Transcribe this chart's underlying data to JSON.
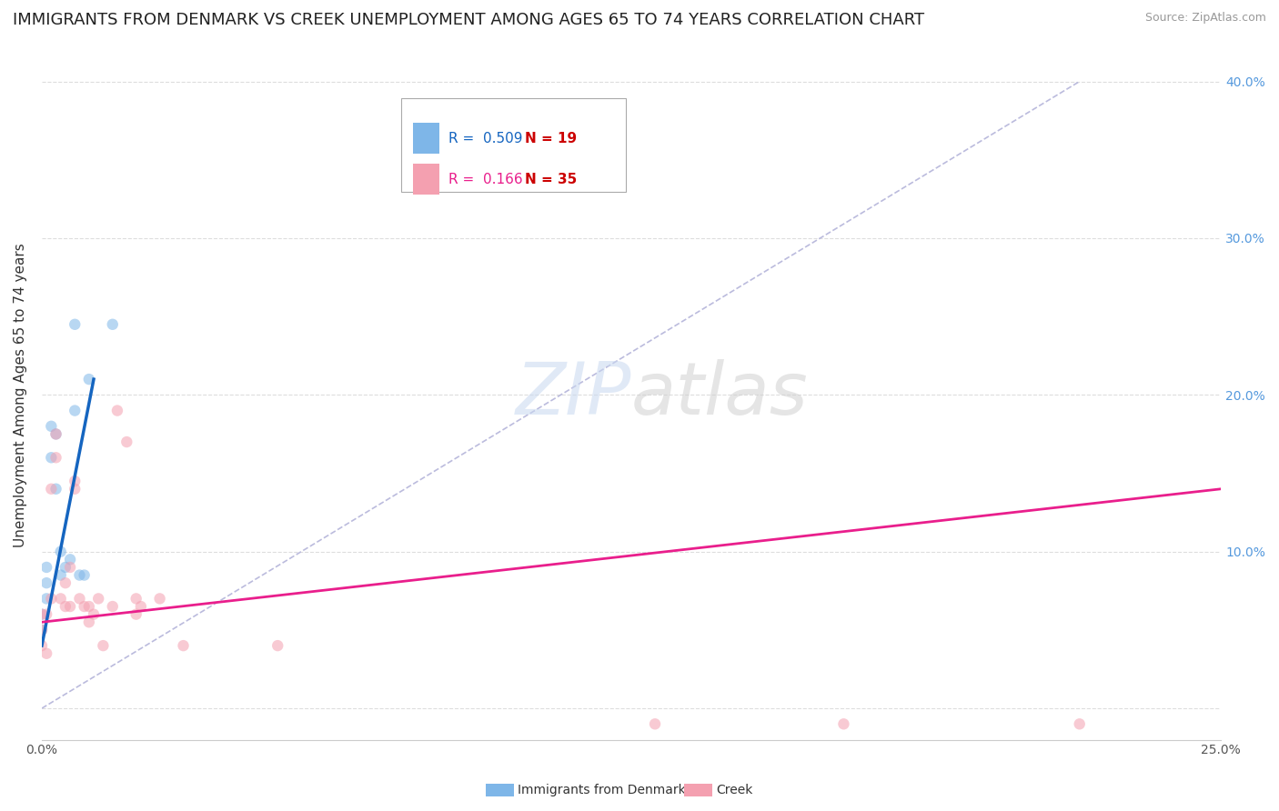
{
  "title": "IMMIGRANTS FROM DENMARK VS CREEK UNEMPLOYMENT AMONG AGES 65 TO 74 YEARS CORRELATION CHART",
  "source": "Source: ZipAtlas.com",
  "ylabel": "Unemployment Among Ages 65 to 74 years",
  "xlim": [
    0.0,
    0.25
  ],
  "ylim": [
    -0.02,
    0.42
  ],
  "legend1_r": "R =  0.509",
  "legend1_n": "N = 19",
  "legend2_r": "R =  0.166",
  "legend2_n": "N = 35",
  "legend1_label": "Immigrants from Denmark",
  "legend2_label": "Creek",
  "watermark_zip": "ZIP",
  "watermark_atlas": "atlas",
  "blue_scatter_x": [
    0.0,
    0.0,
    0.001,
    0.001,
    0.001,
    0.002,
    0.002,
    0.003,
    0.003,
    0.004,
    0.004,
    0.005,
    0.006,
    0.007,
    0.007,
    0.008,
    0.009,
    0.01,
    0.015
  ],
  "blue_scatter_y": [
    0.05,
    0.06,
    0.07,
    0.08,
    0.09,
    0.16,
    0.18,
    0.14,
    0.175,
    0.1,
    0.085,
    0.09,
    0.095,
    0.245,
    0.19,
    0.085,
    0.085,
    0.21,
    0.245
  ],
  "pink_scatter_x": [
    0.0,
    0.0,
    0.0,
    0.001,
    0.001,
    0.002,
    0.002,
    0.003,
    0.003,
    0.004,
    0.005,
    0.005,
    0.006,
    0.006,
    0.007,
    0.007,
    0.008,
    0.009,
    0.01,
    0.01,
    0.011,
    0.012,
    0.013,
    0.015,
    0.016,
    0.018,
    0.02,
    0.02,
    0.021,
    0.025,
    0.03,
    0.05,
    0.13,
    0.17,
    0.22
  ],
  "pink_scatter_y": [
    0.04,
    0.05,
    0.06,
    0.035,
    0.06,
    0.07,
    0.14,
    0.16,
    0.175,
    0.07,
    0.065,
    0.08,
    0.065,
    0.09,
    0.14,
    0.145,
    0.07,
    0.065,
    0.055,
    0.065,
    0.06,
    0.07,
    0.04,
    0.065,
    0.19,
    0.17,
    0.06,
    0.07,
    0.065,
    0.07,
    0.04,
    0.04,
    -0.01,
    -0.01,
    -0.01
  ],
  "blue_line_x": [
    0.0,
    0.011
  ],
  "blue_line_y": [
    0.04,
    0.21
  ],
  "pink_line_x": [
    0.0,
    0.25
  ],
  "pink_line_y": [
    0.055,
    0.14
  ],
  "dashed_line_x": [
    0.0,
    0.22
  ],
  "dashed_line_y": [
    0.0,
    0.4
  ],
  "blue_color": "#7EB6E8",
  "pink_color": "#F4A0B0",
  "blue_line_color": "#1565C0",
  "pink_line_color": "#E91E8C",
  "dashed_line_color": "#BBBBDD",
  "background_color": "#ffffff",
  "grid_color": "#dddddd",
  "title_fontsize": 13,
  "axis_label_fontsize": 11,
  "tick_fontsize": 10,
  "legend_fontsize": 11,
  "scatter_size": 80,
  "scatter_alpha": 0.55
}
